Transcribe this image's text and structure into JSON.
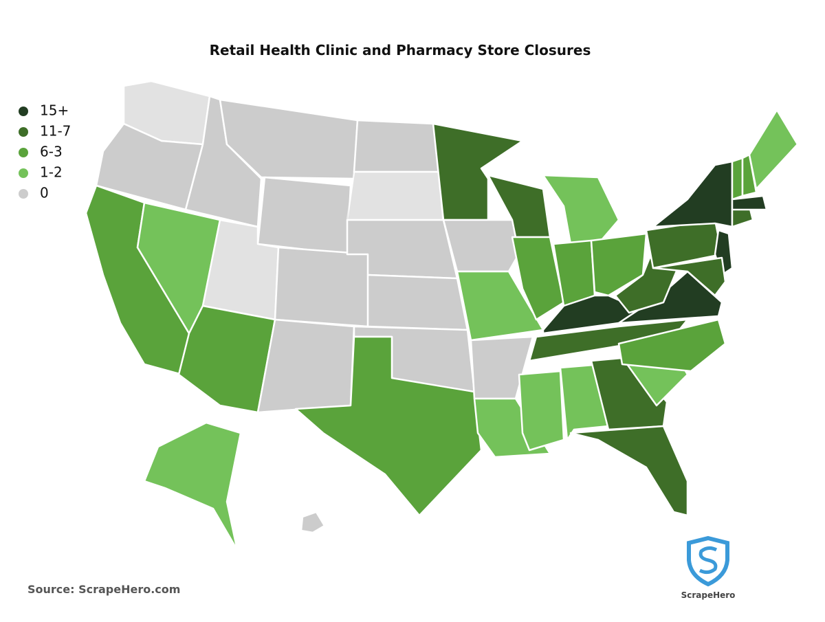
{
  "title": "Retail Health Clinic and Pharmacy Store Closures",
  "legend": [
    {
      "label": "15+",
      "color": "#223d22"
    },
    {
      "label": "11-7",
      "color": "#3e6e28"
    },
    {
      "label": "6-3",
      "color": "#5aa33b"
    },
    {
      "label": "1-2",
      "color": "#74c25a"
    },
    {
      "label": "0",
      "color": "#cccccc"
    }
  ],
  "source": "Source: ScrapeHero.com",
  "logo": "ScrapeHero"
}
